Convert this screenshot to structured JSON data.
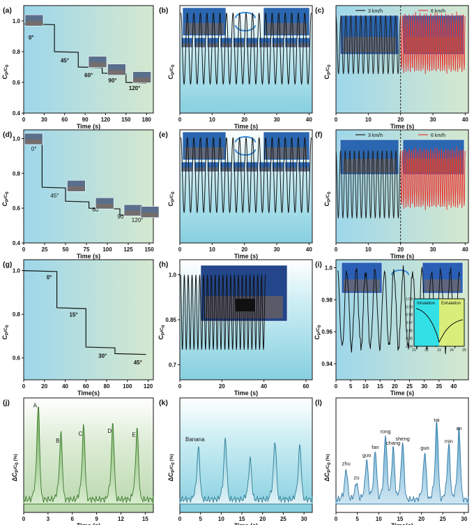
{
  "figure": {
    "panels": [
      {
        "id": "a",
        "tag": "(a)",
        "ylabel": "CP/C0",
        "xlabel": "Time (s)",
        "xticks": [
          0,
          30,
          60,
          90,
          120,
          150,
          180
        ],
        "yticks": [
          0.4,
          0.6,
          0.8,
          1.0
        ],
        "annotations": [
          "0°",
          "45°",
          "60°",
          "90°",
          "120°"
        ]
      },
      {
        "id": "b",
        "tag": "(b)",
        "ylabel": "CP/C0",
        "xlabel": "Time (s)",
        "xticks": [
          0,
          10,
          20,
          30,
          40
        ]
      },
      {
        "id": "c",
        "tag": "(c)",
        "ylabel": "CP/C0",
        "xlabel": "Time (s)",
        "xticks": [
          0,
          10,
          20,
          30,
          40
        ],
        "legend": [
          "3 km/h",
          "6 km/h"
        ]
      },
      {
        "id": "d",
        "tag": "(d)",
        "ylabel": "CP/C0",
        "xlabel": "Time (s)",
        "xticks": [
          0,
          25,
          50,
          75,
          100,
          125,
          150
        ],
        "yticks": [
          0.4,
          0.6,
          0.8,
          1.0
        ],
        "annotations": [
          "0°",
          "45°",
          "60°",
          "90°",
          "120°"
        ]
      },
      {
        "id": "e",
        "tag": "(e)",
        "ylabel": "CP/C0",
        "xlabel": "Time (s)",
        "xticks": [
          0,
          10,
          20,
          30,
          40
        ]
      },
      {
        "id": "f",
        "tag": "(f)",
        "ylabel": "CP/C0",
        "xlabel": "Time (s)",
        "xticks": [
          0,
          10,
          20,
          30,
          40
        ],
        "legend": [
          "3 km/h",
          "6 km/h"
        ]
      },
      {
        "id": "g",
        "tag": "(g)",
        "ylabel": "CP/C0",
        "xlabel": "Time(s)",
        "xticks": [
          0,
          20,
          40,
          60,
          80,
          100,
          120
        ],
        "yticks": [
          0.6,
          0.8,
          1.0
        ],
        "annotations": [
          "0°",
          "15°",
          "30°",
          "45°"
        ]
      },
      {
        "id": "h",
        "tag": "(h)",
        "ylabel": "CP/C0",
        "xlabel": "Time (s)",
        "xticks": [
          0,
          20,
          40,
          60
        ],
        "yticks": [
          0.7,
          0.85,
          1.0
        ]
      },
      {
        "id": "i",
        "tag": "(i)",
        "ylabel": "CP/C0",
        "xlabel": "Time (s)",
        "xticks": [
          0,
          5,
          10,
          15,
          20,
          25,
          30,
          35,
          40
        ],
        "yticks": [
          0.94,
          0.96,
          0.98,
          1.0
        ],
        "inset": {
          "labels": [
            "Inhalation",
            "Exhalation"
          ],
          "xticks": [
            21,
            22,
            23,
            24,
            25
          ],
          "yticks": [
            0.94,
            0.95,
            0.96,
            0.97,
            0.98,
            0.99,
            1.0
          ]
        }
      },
      {
        "id": "j",
        "tag": "(j)",
        "ylabel": "ΔCP/C0 (%)",
        "xlabel": "Time (s)",
        "xticks": [
          0,
          3,
          6,
          9,
          12,
          15
        ],
        "annotations": [
          "A",
          "B",
          "C",
          "D",
          "E"
        ]
      },
      {
        "id": "k",
        "tag": "(k)",
        "ylabel": "ΔCP/C0 (%)",
        "xlabel": "Time (s)",
        "xticks": [
          0,
          5,
          10,
          15,
          20,
          25,
          30
        ],
        "annotations": [
          "Banana"
        ]
      },
      {
        "id": "l",
        "tag": "(l)",
        "ylabel": "ΔCP/C0 (%)",
        "xlabel": "Time(s)",
        "xticks": [
          0,
          5,
          10,
          15,
          20,
          25,
          30
        ],
        "annotations": [
          "zhu",
          "zu",
          "guo",
          "fan",
          "rong",
          "chang",
          "sheng",
          "guo",
          "tai",
          "min",
          "an"
        ]
      }
    ]
  },
  "chart_data": [
    {
      "panel": "a",
      "type": "line",
      "xlim": [
        0,
        190
      ],
      "ylim": [
        0.4,
        1.1
      ],
      "x": [
        0,
        45,
        45,
        80,
        80,
        115,
        115,
        150,
        150,
        180
      ],
      "y": [
        0.98,
        0.98,
        0.8,
        0.8,
        0.7,
        0.7,
        0.66,
        0.66,
        0.6,
        0.6
      ]
    },
    {
      "panel": "b",
      "type": "line",
      "xlim": [
        0,
        41
      ],
      "ylim": [
        0.3,
        1.05
      ],
      "wave": {
        "cycles": 20,
        "min": 0.5,
        "max": 1.0
      }
    },
    {
      "panel": "c",
      "type": "line",
      "xlim": [
        0,
        41
      ],
      "ylim": [
        0.5,
        1.05
      ],
      "series": [
        {
          "name": "3 km/h",
          "color": "#222222",
          "range": [
            0,
            20
          ],
          "cycles": 13,
          "min": 0.7,
          "max": 1.0
        },
        {
          "name": "6 km/h",
          "color": "#e53935",
          "range": [
            20,
            40
          ],
          "cycles": 30,
          "min": 0.72,
          "max": 1.0
        }
      ]
    },
    {
      "panel": "d",
      "type": "line",
      "xlim": [
        0,
        155
      ],
      "ylim": [
        0.4,
        1.05
      ],
      "x": [
        0,
        22,
        22,
        50,
        50,
        78,
        78,
        115,
        115,
        150
      ],
      "y": [
        1.0,
        1.0,
        0.72,
        0.72,
        0.64,
        0.64,
        0.6,
        0.6,
        0.56,
        0.56
      ]
    },
    {
      "panel": "e",
      "type": "line",
      "xlim": [
        0,
        41
      ],
      "ylim": [
        0.3,
        1.05
      ],
      "wave": {
        "cycles": 20,
        "min": 0.5,
        "max": 1.0
      }
    },
    {
      "panel": "f",
      "type": "line",
      "xlim": [
        0,
        41
      ],
      "ylim": [
        0.5,
        1.05
      ],
      "series": [
        {
          "name": "3 km/h",
          "color": "#222222",
          "range": [
            0,
            20
          ],
          "cycles": 14,
          "min": 0.62,
          "max": 0.95
        },
        {
          "name": "6 km/h",
          "color": "#e53935",
          "range": [
            20,
            40
          ],
          "cycles": 30,
          "min": 0.68,
          "max": 0.95
        }
      ]
    },
    {
      "panel": "g",
      "type": "line",
      "xlim": [
        0,
        125
      ],
      "ylim": [
        0.5,
        1.05
      ],
      "x": [
        0,
        32,
        32,
        60,
        60,
        88,
        88,
        118
      ],
      "y": [
        1.0,
        1.0,
        0.83,
        0.83,
        0.65,
        0.65,
        0.62,
        0.62
      ]
    },
    {
      "panel": "h",
      "type": "line",
      "xlim": [
        0,
        63
      ],
      "ylim": [
        0.65,
        1.05
      ],
      "wave": {
        "cycles": 22,
        "min": 0.75,
        "max": 1.0
      }
    },
    {
      "panel": "i",
      "type": "line",
      "xlim": [
        0,
        45
      ],
      "ylim": [
        0.93,
        1.005
      ],
      "wave": {
        "cycles": 13,
        "min": 0.95,
        "max": 0.998
      }
    },
    {
      "panel": "j",
      "type": "area",
      "xlim": [
        0,
        16
      ],
      "peaks_x": [
        1.8,
        4.6,
        7.4,
        11.0,
        14.0
      ],
      "peaks_y": [
        0.47,
        0.33,
        0.37,
        0.38,
        0.36
      ]
    },
    {
      "panel": "k",
      "type": "area",
      "xlim": [
        0,
        32
      ],
      "peaks_x": [
        4.5,
        11,
        17,
        23,
        29
      ]
    },
    {
      "panel": "l",
      "type": "area",
      "xlim": [
        0,
        31
      ],
      "peaks_x": [
        2.4,
        4.8,
        7.2,
        9.2,
        11.6,
        13.4,
        15.6,
        20.8,
        23.6,
        26.4,
        28.8
      ]
    }
  ]
}
